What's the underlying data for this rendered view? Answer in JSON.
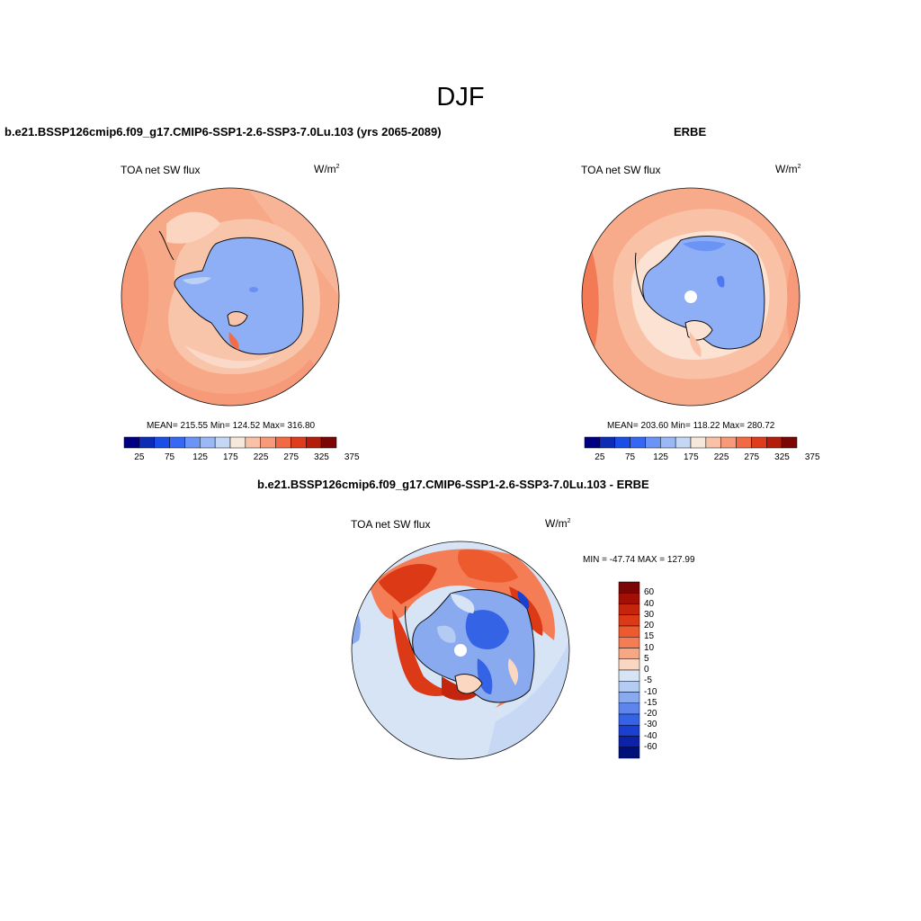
{
  "figure": {
    "season_title": "DJF"
  },
  "panel_left": {
    "subtitle": "b.e21.BSSP126cmip6.f09_g17.CMIP6-SSP1-2.6-SSP3-7.0Lu.103 (yrs 2065-2089)",
    "variable": "TOA net SW flux",
    "units_base": "W/m",
    "units_exp": "2",
    "stats": "MEAN= 215.55  Min= 124.52  Max= 316.80",
    "mean": 215.55,
    "min": 124.52,
    "max": 316.8
  },
  "panel_right": {
    "subtitle": "ERBE",
    "variable": "TOA net SW flux",
    "units_base": "W/m",
    "units_exp": "2",
    "stats": "MEAN= 203.60  Min= 118.22  Max= 280.72",
    "mean": 203.6,
    "min": 118.22,
    "max": 280.72
  },
  "colorbar_horizontal": {
    "tick_labels": [
      "25",
      "75",
      "125",
      "175",
      "225",
      "275",
      "325",
      "375"
    ],
    "colors": [
      "#000080",
      "#0c2cb4",
      "#1a4ee6",
      "#3768f2",
      "#6a94f5",
      "#9ab8f6",
      "#c4d7f5",
      "#f7e8dc",
      "#f9c2a6",
      "#f69a7a",
      "#f06a46",
      "#dd3d1d",
      "#b31d0c",
      "#7b0606"
    ]
  },
  "panel_diff": {
    "subtitle": "b.e21.BSSP126cmip6.f09_g17.CMIP6-SSP1-2.6-SSP3-7.0Lu.103 - ERBE",
    "variable": "TOA net SW flux",
    "units_base": "W/m",
    "units_exp": "2",
    "stats": "MIN = -47.74 MAX = 127.99",
    "min": -47.74,
    "max": 127.99
  },
  "colorbar_vertical": {
    "tick_labels": [
      "60",
      "40",
      "30",
      "20",
      "15",
      "10",
      "5",
      "0",
      "-5",
      "-10",
      "-15",
      "-20",
      "-30",
      "-40",
      "-60"
    ],
    "colors": [
      "#7b0606",
      "#a30f06",
      "#c4250c",
      "#dc3a16",
      "#ec5a2e",
      "#f47d55",
      "#f7a783",
      "#fbd7c2",
      "#d6e4f5",
      "#b4cbf2",
      "#8aaaf0",
      "#5d85eb",
      "#3463e6",
      "#1a40d2",
      "#0c22a8",
      "#00107a"
    ]
  }
}
